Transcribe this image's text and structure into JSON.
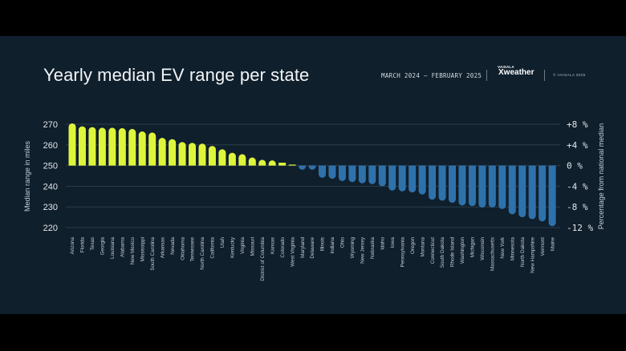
{
  "header": {
    "title": "Yearly median EV range per state",
    "period": "MARCH 2024 – FEBRUARY 2025",
    "logo_small": "VAISALA",
    "logo": "Xweather",
    "copyright": "© VAISALA 2025"
  },
  "colors": {
    "above": "#dff53b",
    "below": "#2f72ab",
    "background": "#0f1f2c",
    "grid": "#2c3d4b"
  },
  "chart_data": {
    "type": "bar",
    "title": "Yearly median EV range per state",
    "ylabel": "Median range in miles",
    "y2label": "Percentage from national median",
    "ylim": [
      220,
      270
    ],
    "baseline": 250,
    "yticks": [
      "270",
      "260",
      "250",
      "240",
      "230",
      "220"
    ],
    "y2ticks": [
      "+8 %",
      "+4 %",
      "0 %",
      "-4 %",
      "-8 %",
      "-12 %"
    ],
    "grid": true,
    "categories": [
      "Arizona",
      "Florida",
      "Texas",
      "Georgia",
      "Louisiana",
      "Alabama",
      "New Mexico",
      "Mississippi",
      "South Carolina",
      "Arkansas",
      "Nevada",
      "Oklahoma",
      "Tennessee",
      "North Carolina",
      "California",
      "Utah",
      "Kentucky",
      "Virginia",
      "Missouri",
      "District of Columbia",
      "Kansas",
      "Colorado",
      "West Virginia",
      "Maryland",
      "Delaware",
      "Illinois",
      "Indiana",
      "Ohio",
      "Wyoming",
      "New Jersey",
      "Nebraska",
      "Idaho",
      "Iowa",
      "Pennsylvania",
      "Oregon",
      "Montana",
      "Connecticut",
      "South Dakota",
      "Rhode Island",
      "Washington",
      "Michigan",
      "Wisconsin",
      "Massachusetts",
      "New York",
      "Minnesota",
      "North Dakota",
      "New Hampshire",
      "Vermont",
      "Maine"
    ],
    "values": [
      270.4,
      269.0,
      268.6,
      268.3,
      268.3,
      268.1,
      267.7,
      266.5,
      266.0,
      263.4,
      262.8,
      261.4,
      261.0,
      260.6,
      259.5,
      257.9,
      256.2,
      255.5,
      253.9,
      252.8,
      252.5,
      251.4,
      250.3,
      248.0,
      248.0,
      244.1,
      243.6,
      242.5,
      242.0,
      241.4,
      241.0,
      240.0,
      237.9,
      237.5,
      237.0,
      236.0,
      233.5,
      233.0,
      232.0,
      230.7,
      230.4,
      229.7,
      229.7,
      229.0,
      226.4,
      225.0,
      224.1,
      223.0,
      220.7
    ]
  }
}
